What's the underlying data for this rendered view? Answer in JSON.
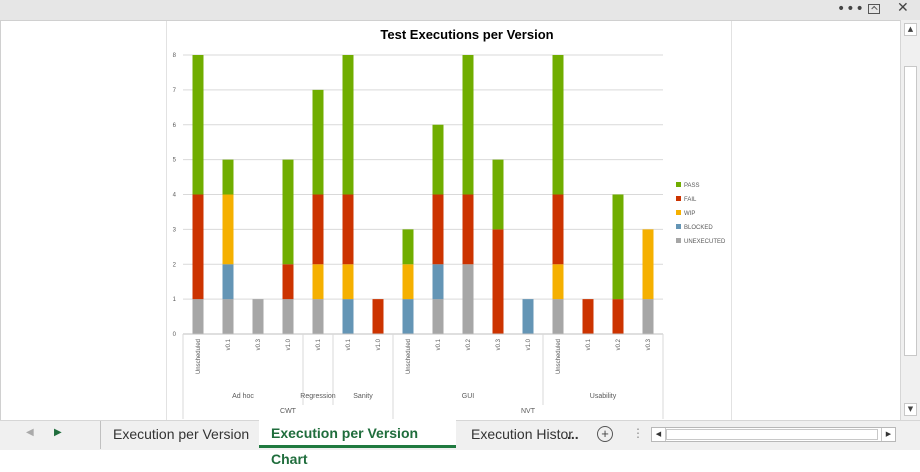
{
  "window": {
    "ribbon_options_icon": "more-options-icon",
    "restore_icon": "restore-window-icon",
    "close_icon": "close-icon"
  },
  "sheet_tabs": {
    "tabs": [
      "Execution per Version",
      "Execution per Version Chart",
      "Execution Histor"
    ],
    "active_index": 1,
    "more_label": "...",
    "add_icon": "plus-circle-icon"
  },
  "colors": {
    "PASS": "#70ad00",
    "FAIL": "#cc3300",
    "WIP": "#f5b000",
    "BLOCKED": "#6495b5",
    "UNEXECUTED": "#a6a6a6"
  },
  "chart_data": {
    "type": "bar",
    "stacked": true,
    "title": "Test Executions per Version",
    "ylim": [
      0,
      8
    ],
    "yticks": [
      "0",
      "1",
      "2",
      "3",
      "4",
      "5",
      "6",
      "7",
      "8"
    ],
    "grid": true,
    "legend_position": "right",
    "categories": [
      "Unscheduled",
      "v0.1",
      "v0.3",
      "v1.0",
      "v0.1",
      "v0.1",
      "v1.0",
      "Unscheduled",
      "v0.1",
      "v0.2",
      "v0.3",
      "v1.0",
      "Unscheduled",
      "v0.1",
      "v0.2",
      "v0.3"
    ],
    "groups": [
      {
        "label": "Ad hoc",
        "start": 0,
        "end": 3
      },
      {
        "label": "Regression",
        "start": 4,
        "end": 4
      },
      {
        "label": "Sanity",
        "start": 5,
        "end": 6
      },
      {
        "label": "GUI",
        "start": 7,
        "end": 11
      },
      {
        "label": "Usability",
        "start": 12,
        "end": 15
      }
    ],
    "supergroups": [
      {
        "label": "CWT",
        "start": 0,
        "end": 6
      },
      {
        "label": "NVT",
        "start": 7,
        "end": 15
      }
    ],
    "series": [
      {
        "name": "UNEXECUTED",
        "values": [
          1,
          1,
          1,
          1,
          1,
          0,
          0,
          0,
          1,
          2,
          0,
          0,
          1,
          0,
          0,
          1
        ]
      },
      {
        "name": "BLOCKED",
        "values": [
          0,
          1,
          0,
          0,
          0,
          1,
          0,
          1,
          1,
          0,
          0,
          1,
          0,
          0,
          0,
          0
        ]
      },
      {
        "name": "WIP",
        "values": [
          0,
          2,
          0,
          0,
          1,
          1,
          0,
          1,
          0,
          0,
          0,
          0,
          1,
          0,
          0,
          2
        ]
      },
      {
        "name": "FAIL",
        "values": [
          3,
          0,
          0,
          1,
          2,
          2,
          1,
          0,
          2,
          2,
          3,
          0,
          2,
          1,
          1,
          0
        ]
      },
      {
        "name": "PASS",
        "values": [
          4,
          1,
          0,
          3,
          3,
          4,
          0,
          1,
          2,
          4,
          2,
          0,
          4,
          0,
          3,
          0
        ]
      }
    ],
    "legend_order": [
      "PASS",
      "FAIL",
      "WIP",
      "BLOCKED",
      "UNEXECUTED"
    ]
  }
}
